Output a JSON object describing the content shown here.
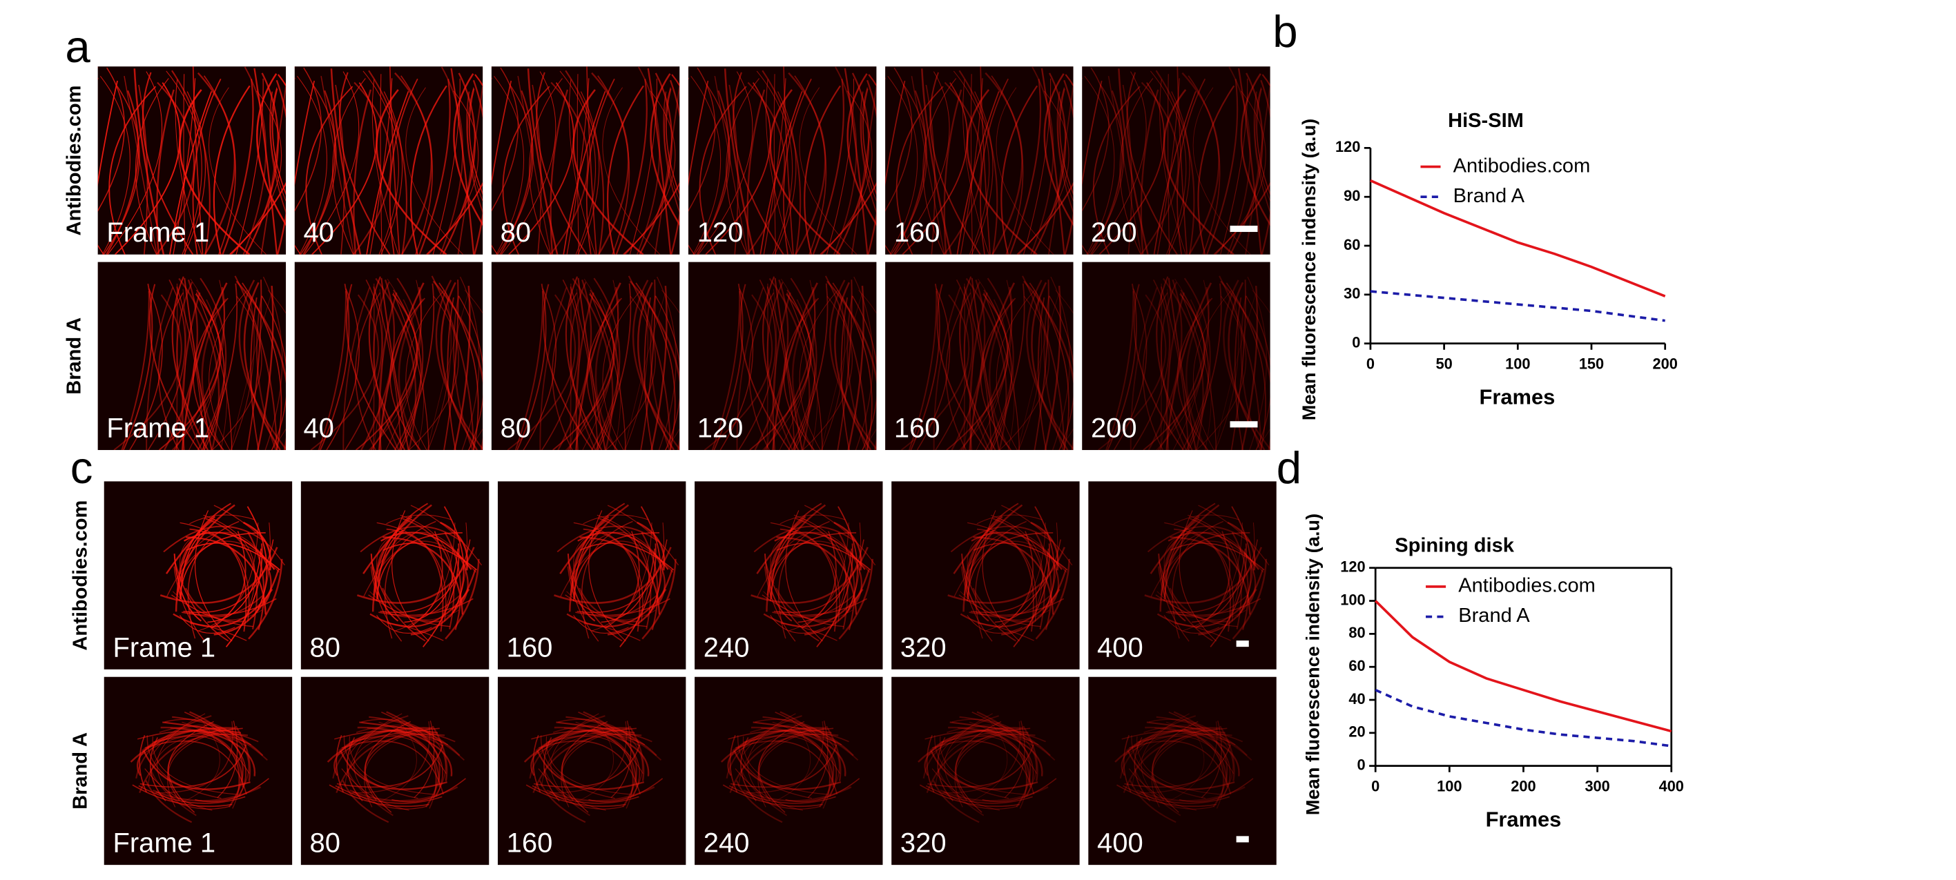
{
  "panels": [
    {
      "label": "a",
      "rows": [
        {
          "label": "Antibodies.com",
          "frames": [
            "Frame 1",
            "40",
            "80",
            "120",
            "160",
            "200"
          ]
        },
        {
          "label": "Brand A",
          "frames": [
            "Frame 1",
            "40",
            "80",
            "120",
            "160",
            "200"
          ]
        }
      ]
    },
    {
      "label": "c",
      "rows": [
        {
          "label": "Antibodies.com",
          "frames": [
            "Frame 1",
            "80",
            "160",
            "240",
            "320",
            "400"
          ]
        },
        {
          "label": "Brand A",
          "frames": [
            "Frame 1",
            "80",
            "160",
            "240",
            "320",
            "400"
          ]
        }
      ]
    }
  ],
  "chart_data": [
    {
      "type": "line",
      "panel": "b",
      "title": "HiS-SIM",
      "xlabel": "Frames",
      "ylabel": "Mean fluorescence indensity (a.u)",
      "x": [
        0,
        25,
        50,
        75,
        100,
        125,
        150,
        175,
        200
      ],
      "series": [
        {
          "name": "Antibodies.com",
          "color": "#e3141b",
          "style": "solid",
          "values": [
            100,
            90,
            80,
            71,
            62,
            55,
            47,
            38,
            29
          ]
        },
        {
          "name": "Brand A",
          "color": "#1c1ca8",
          "style": "dashed",
          "values": [
            32,
            30,
            28,
            26,
            24,
            22,
            20,
            17,
            14
          ]
        }
      ],
      "xlim": [
        0,
        200
      ],
      "ylim": [
        0,
        120
      ],
      "xticks": [
        0,
        50,
        100,
        150,
        200
      ],
      "yticks": [
        0,
        30,
        60,
        90,
        120
      ],
      "legend": "upper right",
      "box": false
    },
    {
      "type": "line",
      "panel": "d",
      "title": "Spining disk",
      "xlabel": "Frames",
      "ylabel": "Mean fluorescence indensity (a.u)",
      "x": [
        0,
        50,
        100,
        150,
        200,
        250,
        300,
        350,
        400
      ],
      "series": [
        {
          "name": "Antibodies.com",
          "color": "#e3141b",
          "style": "solid",
          "values": [
            100,
            78,
            63,
            53,
            46,
            39,
            33,
            27,
            21
          ]
        },
        {
          "name": "Brand A",
          "color": "#1c1ca8",
          "style": "dashed",
          "values": [
            46,
            36,
            30,
            26,
            22,
            19,
            17,
            15,
            12
          ]
        }
      ],
      "xlim": [
        0,
        400
      ],
      "ylim": [
        0,
        120
      ],
      "xticks": [
        0,
        100,
        200,
        300,
        400
      ],
      "yticks": [
        0,
        20,
        40,
        60,
        80,
        100,
        120
      ],
      "legend": "upper right",
      "box": true
    }
  ]
}
